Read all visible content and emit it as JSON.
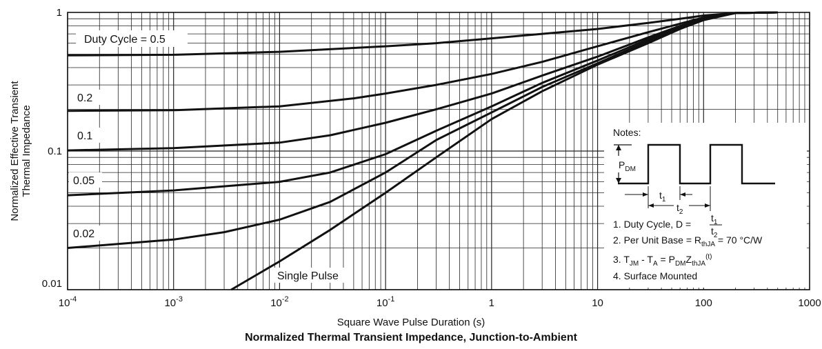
{
  "chart_data": {
    "type": "line",
    "title": "Normalized Thermal Transient Impedance, Junction-to-Ambient",
    "xlabel": "Square Wave Pulse Duration (s)",
    "ylabel_line1": "Normalized Effective Transient",
    "ylabel_line2": "Thermal Impedance",
    "xscale": "log",
    "yscale": "log",
    "xlim": [
      0.0001,
      1000
    ],
    "ylim": [
      0.01,
      1
    ],
    "grid": true,
    "x_tick_labels": [
      {
        "base": "10",
        "exp": "-4"
      },
      {
        "base": "10",
        "exp": "-3"
      },
      {
        "base": "10",
        "exp": "-2"
      },
      {
        "base": "10",
        "exp": "-1"
      },
      {
        "base": "1",
        "exp": ""
      },
      {
        "base": "10",
        "exp": ""
      },
      {
        "base": "100",
        "exp": ""
      },
      {
        "base": "1000",
        "exp": ""
      }
    ],
    "y_tick_labels": [
      "1",
      "0.1",
      "0.01"
    ],
    "series": [
      {
        "name": "Duty Cycle = 0.5",
        "x": [
          0.0001,
          0.001,
          0.01,
          0.1,
          0.3,
          1,
          3,
          10,
          30,
          60,
          100,
          200,
          500
        ],
        "y": [
          0.49,
          0.495,
          0.52,
          0.57,
          0.6,
          0.65,
          0.7,
          0.76,
          0.84,
          0.9,
          0.95,
          0.99,
          1.0
        ]
      },
      {
        "name": "0.2",
        "x": [
          0.0001,
          0.001,
          0.01,
          0.05,
          0.1,
          0.3,
          1,
          3,
          10,
          30,
          60,
          100,
          200,
          500
        ],
        "y": [
          0.195,
          0.197,
          0.21,
          0.24,
          0.26,
          0.3,
          0.36,
          0.44,
          0.57,
          0.72,
          0.83,
          0.92,
          0.99,
          1.0
        ]
      },
      {
        "name": "0.1",
        "x": [
          0.0001,
          0.001,
          0.01,
          0.03,
          0.1,
          0.3,
          1,
          3,
          10,
          30,
          60,
          100,
          200,
          500
        ],
        "y": [
          0.101,
          0.105,
          0.115,
          0.13,
          0.16,
          0.2,
          0.26,
          0.35,
          0.48,
          0.66,
          0.8,
          0.9,
          0.99,
          1.0
        ]
      },
      {
        "name": "0.05",
        "x": [
          0.0001,
          0.001,
          0.01,
          0.03,
          0.1,
          0.3,
          1,
          3,
          10,
          30,
          60,
          100,
          200,
          500
        ],
        "y": [
          0.048,
          0.052,
          0.06,
          0.07,
          0.095,
          0.14,
          0.21,
          0.31,
          0.45,
          0.64,
          0.79,
          0.9,
          0.99,
          1.0
        ]
      },
      {
        "name": "0.02",
        "x": [
          0.0001,
          0.001,
          0.003,
          0.01,
          0.03,
          0.1,
          0.3,
          1,
          3,
          10,
          30,
          60,
          100,
          200,
          500
        ],
        "y": [
          0.02,
          0.023,
          0.026,
          0.032,
          0.043,
          0.07,
          0.12,
          0.19,
          0.29,
          0.43,
          0.62,
          0.78,
          0.89,
          0.99,
          1.0
        ]
      },
      {
        "name": "Single Pulse",
        "x": [
          0.0035,
          0.01,
          0.03,
          0.1,
          0.3,
          1,
          3,
          10,
          30,
          60,
          100,
          200,
          500
        ],
        "y": [
          0.01,
          0.016,
          0.027,
          0.05,
          0.09,
          0.17,
          0.27,
          0.42,
          0.6,
          0.76,
          0.88,
          0.99,
          1.0
        ]
      }
    ],
    "notes": {
      "heading": "Notes:",
      "pdm_main": "P",
      "pdm_sub": "DM",
      "t1_main": "t",
      "t1_sub": "1",
      "t2_main": "t",
      "t2_sub": "2",
      "n1_text": "1. Duty Cycle, D =",
      "n2_a": "2. Per Unit Base = R",
      "n2_sub": "thJA",
      "n2_b": " = 70 °C/W",
      "n3_a": "3. T",
      "n3_s1": "JM",
      "n3_b": " - T",
      "n3_s2": "A",
      "n3_c": " = P",
      "n3_s3": "DM",
      "n3_d": "Z",
      "n3_s4": "thJA",
      "n3_sup": "(t)",
      "n4": "4. Surface Mounted"
    }
  }
}
